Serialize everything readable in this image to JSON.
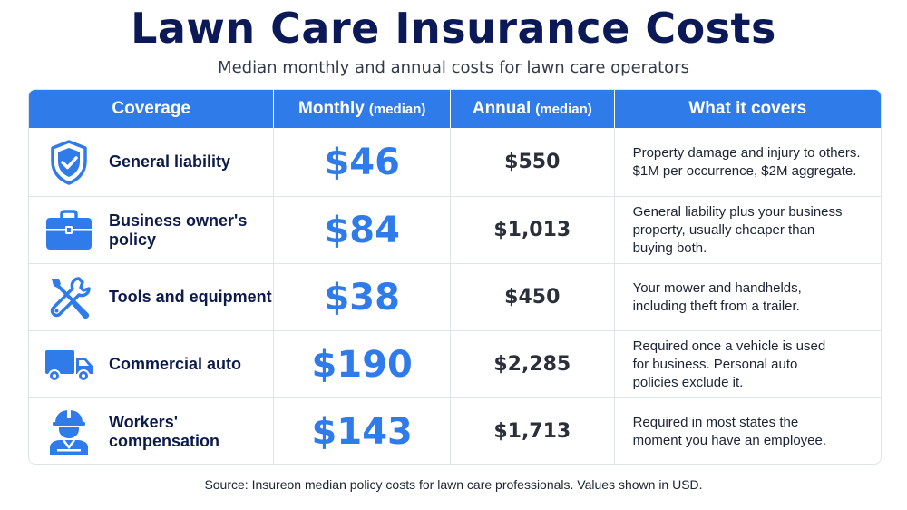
{
  "title": "Lawn Care Insurance Costs",
  "subtitle": "Median monthly and annual costs for lawn care operators",
  "colors": {
    "accent": "#2f7be9",
    "title": "#0b1a57",
    "header_bg": "#2f7be9"
  },
  "table": {
    "headers": {
      "coverage": "Coverage",
      "monthly": "Monthly",
      "monthly_note": "(median)",
      "annual": "Annual",
      "annual_note": "(median)",
      "covers": "What it covers"
    },
    "rows": [
      {
        "icon": "shield-check-icon",
        "coverage": "General liability",
        "monthly": "$46",
        "annual": "$550",
        "covers": [
          "Property damage and injury to others.",
          "$1M per occurrence, $2M aggregate."
        ]
      },
      {
        "icon": "briefcase-icon",
        "coverage": "Business owner's policy",
        "monthly": "$84",
        "annual": "$1,013",
        "covers": [
          "General liability plus your business",
          "property, usually cheaper than",
          "buying both."
        ]
      },
      {
        "icon": "wrench-screwdriver-icon",
        "coverage": "Tools and equipment",
        "monthly": "$38",
        "annual": "$450",
        "covers": [
          "Your mower and handhelds,",
          "including theft from a trailer."
        ]
      },
      {
        "icon": "truck-icon",
        "coverage": "Commercial auto",
        "monthly": "$190",
        "annual": "$2,285",
        "covers": [
          "Required once a vehicle is used",
          "for business. Personal auto",
          "policies exclude it."
        ]
      },
      {
        "icon": "worker-hardhat-icon",
        "coverage": "Workers' compensation",
        "monthly": "$143",
        "annual": "$1,713",
        "covers": [
          "Required in most states the",
          "moment you have an employee."
        ]
      }
    ]
  },
  "source": "Source: Insureon median policy costs for lawn care professionals. Values shown in USD."
}
